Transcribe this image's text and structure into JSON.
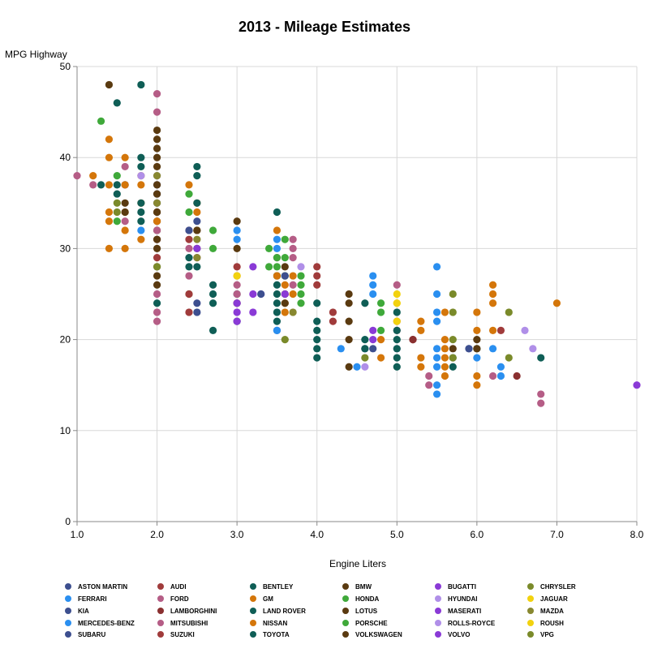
{
  "chart_data": {
    "type": "scatter",
    "title": "2013 - Mileage Estimates",
    "xlabel": "Engine Liters",
    "ylabel": "MPG Highway",
    "xlim": [
      1.0,
      8.0
    ],
    "ylim": [
      0,
      50
    ],
    "xticks": [
      "1.0",
      "2.0",
      "3.0",
      "4.0",
      "5.0",
      "6.0",
      "7.0",
      "8.0"
    ],
    "yticks": [
      "0",
      "10",
      "20",
      "30",
      "40",
      "50"
    ],
    "grid": true,
    "legend_position": "bottom",
    "series": [
      {
        "name": "ASTON MARTIN",
        "color": "#3d4f8f",
        "points": [
          [
            4.7,
            19
          ],
          [
            5.9,
            19
          ],
          [
            5.9,
            19
          ]
        ]
      },
      {
        "name": "AUDI",
        "color": "#a03b3b",
        "points": [
          [
            2.0,
            31
          ],
          [
            2.0,
            29
          ],
          [
            2.4,
            31
          ],
          [
            3.0,
            28
          ],
          [
            3.0,
            24
          ],
          [
            4.0,
            28
          ],
          [
            4.0,
            27
          ],
          [
            4.0,
            26
          ],
          [
            4.2,
            23
          ],
          [
            4.2,
            22
          ],
          [
            5.2,
            20
          ],
          [
            6.3,
            21
          ]
        ]
      },
      {
        "name": "BENTLEY",
        "color": "#0f5e56",
        "points": [
          [
            6.0,
            19
          ],
          [
            6.8,
            18
          ]
        ]
      },
      {
        "name": "BMW",
        "color": "#5a3a10",
        "points": [
          [
            2.0,
            43
          ],
          [
            2.0,
            34
          ],
          [
            2.0,
            33
          ],
          [
            2.0,
            32
          ],
          [
            2.0,
            30
          ],
          [
            2.5,
            32
          ],
          [
            3.0,
            33
          ],
          [
            3.0,
            30
          ],
          [
            3.0,
            24
          ],
          [
            4.4,
            25
          ],
          [
            4.4,
            24
          ],
          [
            4.4,
            22
          ],
          [
            6.0,
            20
          ]
        ]
      },
      {
        "name": "BUGATTI",
        "color": "#8a3ad6",
        "points": [
          [
            8.0,
            15
          ]
        ]
      },
      {
        "name": "CHRYSLER",
        "color": "#7a8a2a",
        "points": [
          [
            2.4,
            25
          ],
          [
            3.6,
            27
          ],
          [
            5.7,
            25
          ],
          [
            5.7,
            23
          ],
          [
            6.4,
            23
          ]
        ]
      },
      {
        "name": "FERRARI",
        "color": "#2a8ff0",
        "points": [
          [
            4.3,
            19
          ],
          [
            4.5,
            17
          ],
          [
            6.0,
            18
          ],
          [
            6.3,
            16
          ]
        ]
      },
      {
        "name": "FORD",
        "color": "#b55d86",
        "points": [
          [
            1.0,
            38
          ],
          [
            1.6,
            39
          ],
          [
            1.6,
            33
          ],
          [
            2.0,
            47
          ],
          [
            2.0,
            45
          ],
          [
            2.0,
            25
          ],
          [
            2.0,
            23
          ],
          [
            2.0,
            22
          ],
          [
            2.5,
            29
          ],
          [
            3.5,
            29
          ],
          [
            3.7,
            31
          ],
          [
            3.7,
            30
          ],
          [
            3.7,
            29
          ],
          [
            5.0,
            26
          ],
          [
            5.0,
            22
          ],
          [
            5.0,
            21
          ],
          [
            5.4,
            16
          ],
          [
            5.4,
            15
          ],
          [
            6.2,
            16
          ],
          [
            6.8,
            14
          ],
          [
            6.8,
            13
          ]
        ]
      },
      {
        "name": "GM",
        "color": "#d4760a",
        "points": [
          [
            1.2,
            38
          ],
          [
            1.4,
            42
          ],
          [
            1.4,
            40
          ],
          [
            1.4,
            37
          ],
          [
            1.4,
            34
          ],
          [
            1.4,
            33
          ],
          [
            1.4,
            30
          ],
          [
            1.8,
            38
          ],
          [
            1.8,
            35
          ],
          [
            1.8,
            31
          ],
          [
            2.0,
            33
          ],
          [
            2.4,
            37
          ],
          [
            2.4,
            32
          ],
          [
            3.0,
            27
          ],
          [
            3.6,
            26
          ],
          [
            3.6,
            25
          ],
          [
            3.6,
            24
          ],
          [
            3.6,
            23
          ],
          [
            4.8,
            20
          ],
          [
            4.8,
            18
          ],
          [
            5.3,
            22
          ],
          [
            5.3,
            21
          ],
          [
            5.3,
            18
          ],
          [
            5.3,
            17
          ],
          [
            6.0,
            23
          ],
          [
            6.0,
            21
          ],
          [
            6.2,
            26
          ],
          [
            6.2,
            25
          ],
          [
            6.2,
            24
          ],
          [
            6.2,
            21
          ],
          [
            7.0,
            24
          ]
        ]
      },
      {
        "name": "HONDA",
        "color": "#3fa93a",
        "points": [
          [
            1.3,
            44
          ],
          [
            1.5,
            38
          ],
          [
            1.5,
            33
          ],
          [
            2.4,
            36
          ],
          [
            2.4,
            34
          ],
          [
            3.5,
            29
          ],
          [
            3.5,
            28
          ],
          [
            3.5,
            27
          ]
        ]
      },
      {
        "name": "HYUNDAI",
        "color": "#b08fe8",
        "points": [
          [
            1.6,
            37
          ],
          [
            1.8,
            38
          ],
          [
            2.0,
            38
          ],
          [
            2.4,
            32
          ],
          [
            3.3,
            25
          ],
          [
            3.8,
            28
          ],
          [
            4.6,
            17
          ],
          [
            5.0,
            19
          ]
        ]
      },
      {
        "name": "JAGUAR",
        "color": "#f2d20f",
        "points": [
          [
            3.0,
            27
          ],
          [
            5.0,
            25
          ],
          [
            5.0,
            24
          ],
          [
            5.0,
            22
          ]
        ]
      },
      {
        "name": "KIA",
        "color": "#3d4f8f",
        "points": [
          [
            1.6,
            37
          ],
          [
            2.0,
            35
          ],
          [
            2.4,
            32
          ],
          [
            3.3,
            25
          ],
          [
            3.5,
            21
          ],
          [
            4.6,
            19
          ]
        ]
      },
      {
        "name": "LAMBORGHINI",
        "color": "#8a3030",
        "points": [
          [
            5.2,
            20
          ],
          [
            6.5,
            16
          ]
        ]
      },
      {
        "name": "LAND ROVER",
        "color": "#0f5e56",
        "points": [
          [
            2.0,
            24
          ],
          [
            3.0,
            25
          ],
          [
            3.0,
            22
          ],
          [
            5.0,
            21
          ],
          [
            5.0,
            20
          ],
          [
            5.0,
            19
          ]
        ]
      },
      {
        "name": "LOTUS",
        "color": "#5a3a10",
        "points": [
          [
            1.4,
            48
          ],
          [
            3.5,
            27
          ]
        ]
      },
      {
        "name": "MASERATI",
        "color": "#8a3ad6",
        "points": [
          [
            4.7,
            21
          ],
          [
            4.7,
            20
          ]
        ]
      },
      {
        "name": "MAZDA",
        "color": "#888830",
        "points": [
          [
            2.0,
            38
          ],
          [
            2.0,
            35
          ],
          [
            2.5,
            31
          ],
          [
            2.5,
            29
          ],
          [
            3.7,
            23
          ]
        ]
      },
      {
        "name": "MERCEDES-BENZ",
        "color": "#2a8ff0",
        "points": [
          [
            1.8,
            32
          ],
          [
            3.0,
            32
          ],
          [
            3.0,
            31
          ],
          [
            3.5,
            31
          ],
          [
            3.5,
            30
          ],
          [
            3.5,
            21
          ],
          [
            4.7,
            27
          ],
          [
            4.7,
            26
          ],
          [
            4.7,
            25
          ],
          [
            5.5,
            28
          ],
          [
            5.5,
            25
          ],
          [
            5.5,
            23
          ],
          [
            5.5,
            22
          ],
          [
            5.5,
            19
          ],
          [
            5.5,
            18
          ],
          [
            5.5,
            17
          ],
          [
            5.5,
            15
          ],
          [
            5.5,
            14
          ],
          [
            6.2,
            19
          ],
          [
            6.3,
            17
          ]
        ]
      },
      {
        "name": "MITSUBISHI",
        "color": "#b55d86",
        "points": [
          [
            1.2,
            37
          ],
          [
            2.0,
            32
          ],
          [
            2.4,
            30
          ],
          [
            2.4,
            27
          ],
          [
            3.0,
            26
          ],
          [
            3.0,
            25
          ],
          [
            3.7,
            26
          ]
        ]
      },
      {
        "name": "NISSAN",
        "color": "#d4760a",
        "points": [
          [
            1.6,
            40
          ],
          [
            1.6,
            37
          ],
          [
            1.6,
            34
          ],
          [
            1.6,
            32
          ],
          [
            1.6,
            30
          ],
          [
            1.8,
            37
          ],
          [
            2.5,
            35
          ],
          [
            2.5,
            34
          ],
          [
            3.5,
            32
          ],
          [
            3.5,
            27
          ],
          [
            3.7,
            27
          ],
          [
            3.7,
            25
          ],
          [
            5.6,
            23
          ],
          [
            5.6,
            20
          ],
          [
            5.6,
            19
          ],
          [
            5.6,
            18
          ],
          [
            5.6,
            17
          ],
          [
            5.6,
            16
          ],
          [
            6.0,
            16
          ],
          [
            6.0,
            15
          ]
        ]
      },
      {
        "name": "PORSCHE",
        "color": "#3fa93a",
        "points": [
          [
            2.7,
            32
          ],
          [
            2.7,
            30
          ],
          [
            3.4,
            30
          ],
          [
            3.4,
            28
          ],
          [
            3.6,
            31
          ],
          [
            3.6,
            29
          ],
          [
            3.6,
            27
          ],
          [
            3.8,
            27
          ],
          [
            3.8,
            26
          ],
          [
            3.8,
            25
          ],
          [
            3.8,
            24
          ],
          [
            4.8,
            24
          ],
          [
            4.8,
            23
          ],
          [
            4.8,
            21
          ]
        ]
      },
      {
        "name": "ROLLS-ROYCE",
        "color": "#b08fe8",
        "points": [
          [
            6.6,
            21
          ],
          [
            6.7,
            19
          ]
        ]
      },
      {
        "name": "ROUSH",
        "color": "#f2d20f",
        "points": [
          [
            5.0,
            24
          ]
        ]
      },
      {
        "name": "SUBARU",
        "color": "#3d4f8f",
        "points": [
          [
            2.0,
            37
          ],
          [
            2.0,
            36
          ],
          [
            2.5,
            33
          ],
          [
            2.5,
            24
          ],
          [
            2.5,
            23
          ],
          [
            3.6,
            27
          ]
        ]
      },
      {
        "name": "SUZUKI",
        "color": "#a03b3b",
        "points": [
          [
            2.4,
            25
          ],
          [
            2.4,
            23
          ]
        ]
      },
      {
        "name": "TOYOTA",
        "color": "#0f5e56",
        "points": [
          [
            1.3,
            37
          ],
          [
            1.5,
            46
          ],
          [
            1.5,
            37
          ],
          [
            1.5,
            36
          ],
          [
            1.8,
            48
          ],
          [
            1.8,
            40
          ],
          [
            1.8,
            39
          ],
          [
            1.8,
            35
          ],
          [
            1.8,
            34
          ],
          [
            1.8,
            33
          ],
          [
            2.4,
            29
          ],
          [
            2.4,
            28
          ],
          [
            2.5,
            39
          ],
          [
            2.5,
            38
          ],
          [
            2.5,
            35
          ],
          [
            2.5,
            28
          ],
          [
            2.7,
            26
          ],
          [
            2.7,
            25
          ],
          [
            2.7,
            24
          ],
          [
            2.7,
            21
          ],
          [
            3.5,
            34
          ],
          [
            3.5,
            26
          ],
          [
            3.5,
            25
          ],
          [
            3.5,
            24
          ],
          [
            3.5,
            23
          ],
          [
            3.5,
            22
          ],
          [
            4.0,
            24
          ],
          [
            4.0,
            22
          ],
          [
            4.0,
            21
          ],
          [
            4.0,
            20
          ],
          [
            4.0,
            19
          ],
          [
            4.0,
            18
          ],
          [
            4.6,
            24
          ],
          [
            4.6,
            20
          ],
          [
            4.6,
            19
          ],
          [
            5.0,
            23
          ],
          [
            5.0,
            18
          ],
          [
            5.0,
            17
          ],
          [
            5.7,
            18
          ],
          [
            5.7,
            17
          ]
        ]
      },
      {
        "name": "VOLKSWAGEN",
        "color": "#5a3a10",
        "points": [
          [
            1.6,
            35
          ],
          [
            1.6,
            34
          ],
          [
            2.0,
            42
          ],
          [
            2.0,
            41
          ],
          [
            2.0,
            40
          ],
          [
            2.0,
            39
          ],
          [
            2.0,
            37
          ],
          [
            2.0,
            36
          ],
          [
            2.0,
            34
          ],
          [
            2.0,
            31
          ],
          [
            2.0,
            28
          ],
          [
            2.0,
            27
          ],
          [
            2.0,
            26
          ],
          [
            2.5,
            32
          ],
          [
            2.5,
            30
          ],
          [
            3.6,
            28
          ],
          [
            3.6,
            25
          ],
          [
            3.6,
            24
          ],
          [
            4.4,
            20
          ],
          [
            4.4,
            17
          ],
          [
            5.7,
            19
          ],
          [
            6.0,
            19
          ]
        ]
      },
      {
        "name": "VOLVO",
        "color": "#8a3ad6",
        "points": [
          [
            2.5,
            30
          ],
          [
            3.0,
            24
          ],
          [
            3.0,
            23
          ],
          [
            3.0,
            22
          ],
          [
            3.2,
            28
          ],
          [
            3.2,
            25
          ],
          [
            3.2,
            23
          ],
          [
            3.6,
            25
          ]
        ]
      },
      {
        "name": "VPG",
        "color": "#7a8a2a",
        "points": [
          [
            1.5,
            35
          ],
          [
            1.5,
            34
          ],
          [
            2.0,
            28
          ],
          [
            3.6,
            20
          ],
          [
            4.6,
            18
          ],
          [
            5.7,
            20
          ],
          [
            5.7,
            18
          ],
          [
            6.4,
            18
          ]
        ]
      }
    ]
  }
}
